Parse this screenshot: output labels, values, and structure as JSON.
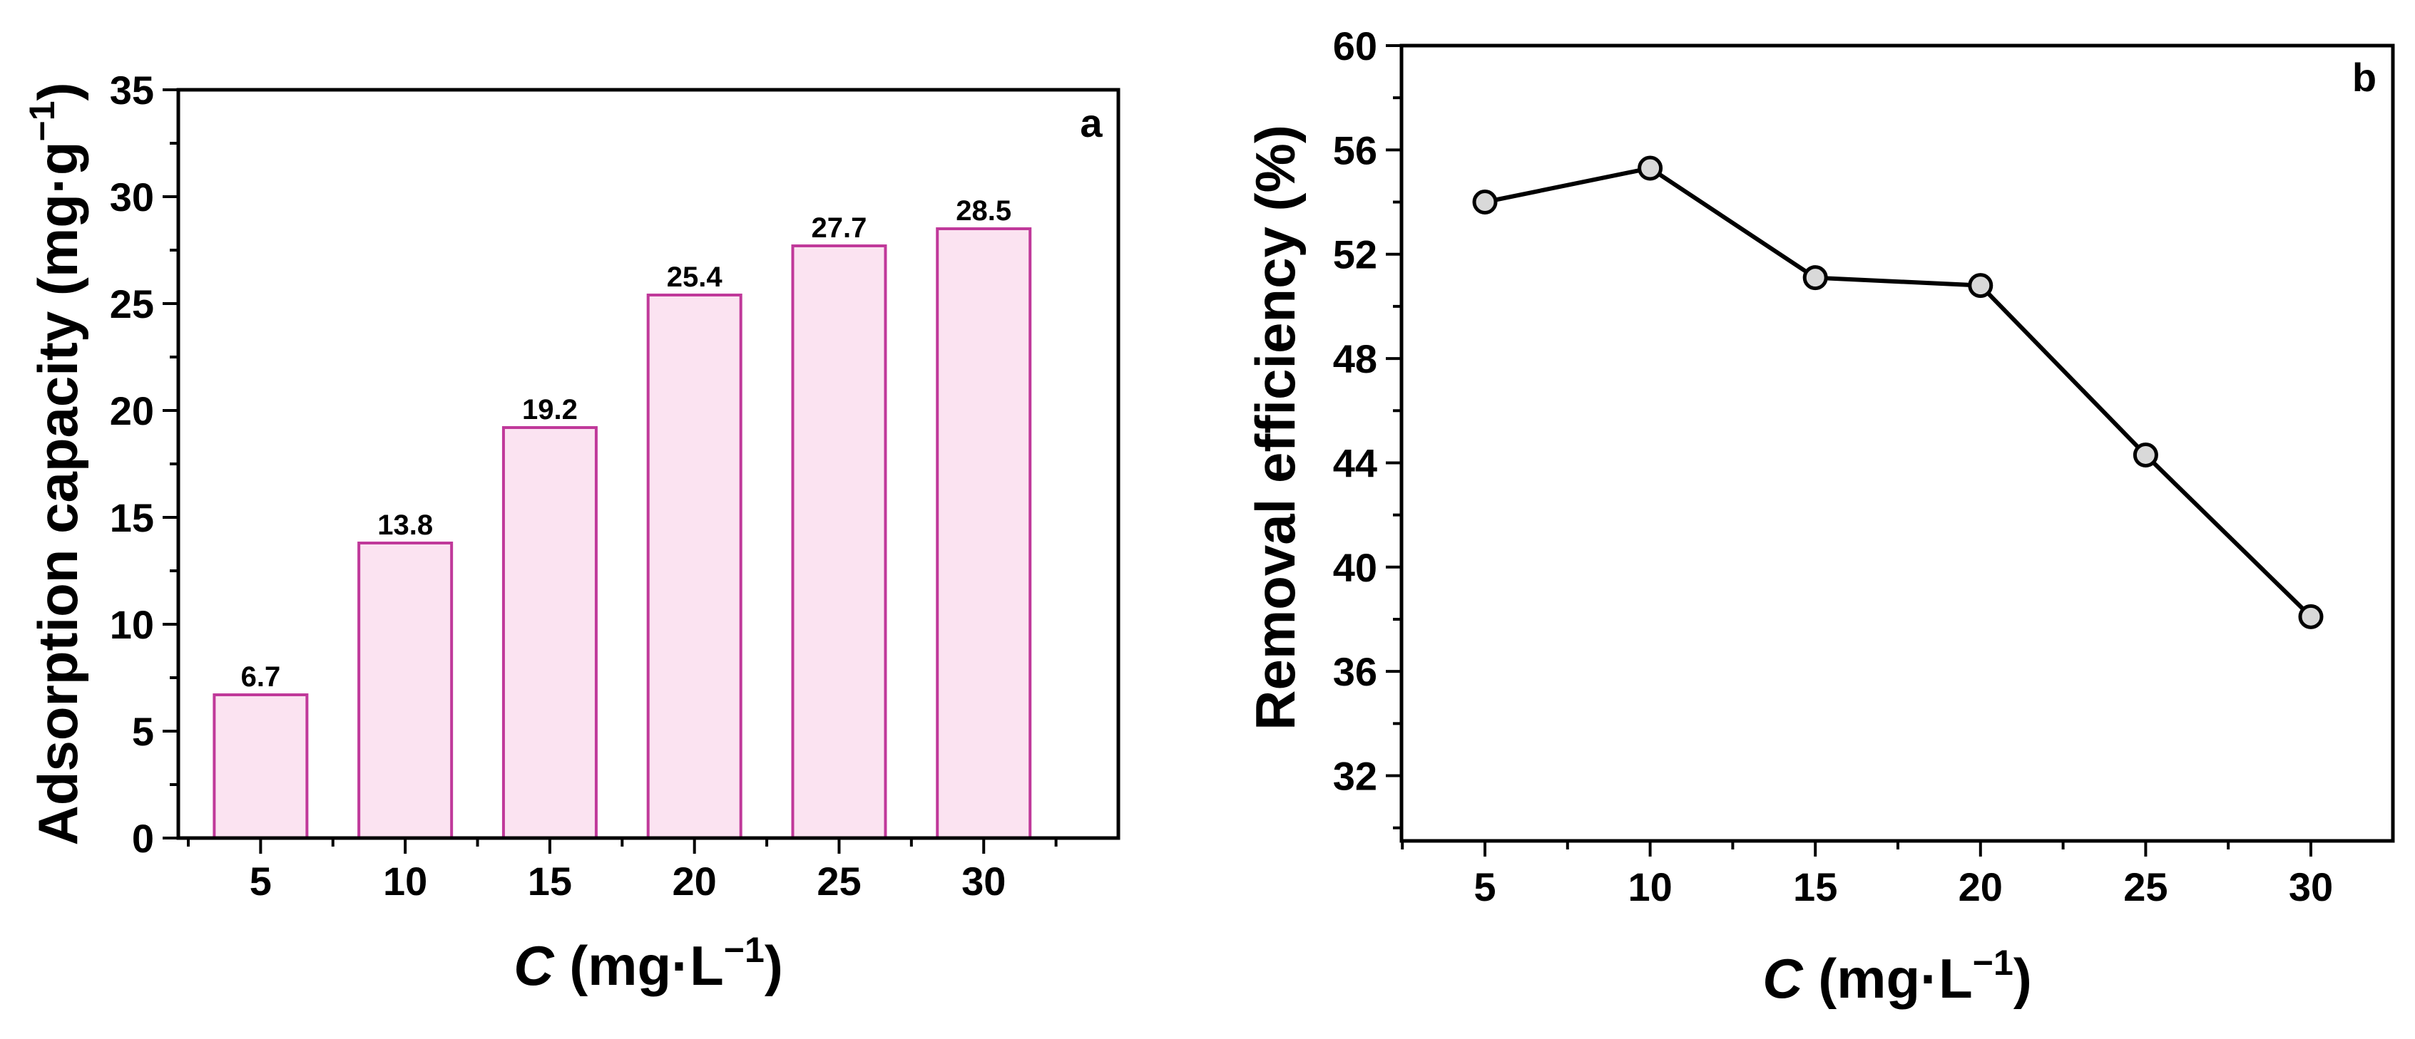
{
  "chart_data": [
    {
      "panel": "a",
      "type": "bar",
      "categories": [
        "5",
        "10",
        "15",
        "20",
        "25",
        "30"
      ],
      "values": [
        6.7,
        13.8,
        19.2,
        25.4,
        27.7,
        28.5
      ],
      "data_labels": [
        "6.7",
        "13.8",
        "19.2",
        "25.4",
        "27.7",
        "28.5"
      ],
      "ylim": [
        0,
        35
      ],
      "yticks": [
        "0",
        "5",
        "10",
        "15",
        "20",
        "25",
        "30",
        "35"
      ],
      "xlabel_italic": "C",
      "xlabel_rest": " (mg·L",
      "xlabel_sup": "−1",
      "xlabel_close": ")",
      "ylabel": "Adsorption capacity (mg·g",
      "ylabel_sup": "−1",
      "ylabel_close": ")",
      "colors": {
        "bar_fill": "#fbe3f1",
        "bar_stroke": "#c0399a"
      }
    },
    {
      "panel": "b",
      "type": "line",
      "x": [
        5,
        10,
        15,
        20,
        25,
        30
      ],
      "xticks": [
        "5",
        "10",
        "15",
        "20",
        "25",
        "30"
      ],
      "values": [
        54.0,
        55.3,
        51.1,
        50.8,
        44.3,
        38.1
      ],
      "ylim": [
        29.5,
        60
      ],
      "yticks": [
        "32",
        "36",
        "40",
        "44",
        "48",
        "52",
        "56",
        "60"
      ],
      "xlabel_italic": "C",
      "xlabel_rest": " (mg·L",
      "xlabel_sup": "−1",
      "xlabel_close": ")",
      "ylabel": "Removal efficiency (%)",
      "colors": {
        "line": "#000000",
        "marker_fill": "#d9d9d9"
      }
    }
  ]
}
